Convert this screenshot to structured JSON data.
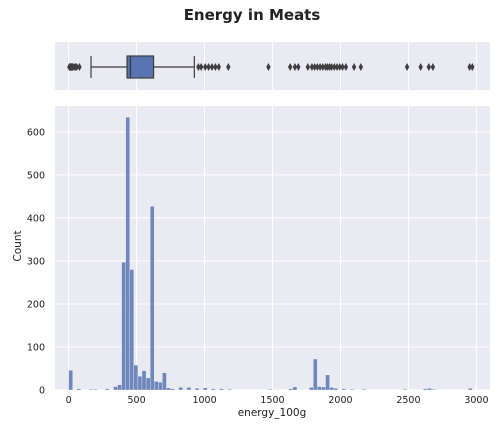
{
  "chart_data": {
    "type": "bar",
    "title": "Energy in Meats",
    "xlabel": "energy_100g",
    "ylabel": "Count",
    "xlim": [
      -100,
      3100
    ],
    "ylim": [
      0,
      660
    ],
    "x_ticks": [
      "0",
      "500",
      "1000",
      "1500",
      "2000",
      "2500",
      "3000"
    ],
    "y_ticks": [
      "0",
      "100",
      "200",
      "300",
      "400",
      "500",
      "600"
    ],
    "grid": true,
    "bin_width": 30,
    "histogram": [
      {
        "x": 15,
        "count": 46
      },
      {
        "x": 75,
        "count": 3
      },
      {
        "x": 165,
        "count": 2
      },
      {
        "x": 195,
        "count": 2
      },
      {
        "x": 285,
        "count": 3
      },
      {
        "x": 345,
        "count": 8
      },
      {
        "x": 375,
        "count": 12
      },
      {
        "x": 405,
        "count": 297
      },
      {
        "x": 435,
        "count": 634
      },
      {
        "x": 465,
        "count": 280
      },
      {
        "x": 495,
        "count": 58
      },
      {
        "x": 525,
        "count": 32
      },
      {
        "x": 555,
        "count": 45
      },
      {
        "x": 585,
        "count": 28
      },
      {
        "x": 615,
        "count": 427
      },
      {
        "x": 645,
        "count": 20
      },
      {
        "x": 675,
        "count": 18
      },
      {
        "x": 705,
        "count": 40
      },
      {
        "x": 735,
        "count": 5
      },
      {
        "x": 765,
        "count": 3
      },
      {
        "x": 825,
        "count": 6
      },
      {
        "x": 885,
        "count": 6
      },
      {
        "x": 945,
        "count": 4
      },
      {
        "x": 1005,
        "count": 5
      },
      {
        "x": 1065,
        "count": 3
      },
      {
        "x": 1125,
        "count": 3
      },
      {
        "x": 1185,
        "count": 2
      },
      {
        "x": 1485,
        "count": 2
      },
      {
        "x": 1635,
        "count": 3
      },
      {
        "x": 1665,
        "count": 7
      },
      {
        "x": 1785,
        "count": 6
      },
      {
        "x": 1815,
        "count": 72
      },
      {
        "x": 1845,
        "count": 8
      },
      {
        "x": 1875,
        "count": 7
      },
      {
        "x": 1905,
        "count": 35
      },
      {
        "x": 1935,
        "count": 6
      },
      {
        "x": 1965,
        "count": 4
      },
      {
        "x": 2025,
        "count": 3
      },
      {
        "x": 2085,
        "count": 2
      },
      {
        "x": 2175,
        "count": 2
      },
      {
        "x": 2475,
        "count": 2
      },
      {
        "x": 2625,
        "count": 3
      },
      {
        "x": 2655,
        "count": 4
      },
      {
        "x": 2685,
        "count": 2
      },
      {
        "x": 2955,
        "count": 4
      }
    ],
    "boxplot": {
      "q1": 430,
      "median": 455,
      "q3": 625,
      "whisker_low": 165,
      "whisker_high": 925,
      "outliers": [
        5,
        10,
        15,
        20,
        25,
        30,
        40,
        50,
        60,
        80,
        955,
        975,
        1005,
        1030,
        1055,
        1080,
        1105,
        1175,
        1470,
        1630,
        1665,
        1690,
        1760,
        1790,
        1810,
        1830,
        1850,
        1870,
        1890,
        1905,
        1920,
        1935,
        1955,
        1975,
        1995,
        2015,
        2040,
        2100,
        2150,
        2490,
        2590,
        2650,
        2680,
        2950,
        2970
      ]
    },
    "colors": {
      "bar": "#5975b1",
      "box": "#5975b1",
      "plot_background": "#eaeaf2",
      "grid": "#ffffff",
      "whisker": "#3c3c3c"
    }
  }
}
